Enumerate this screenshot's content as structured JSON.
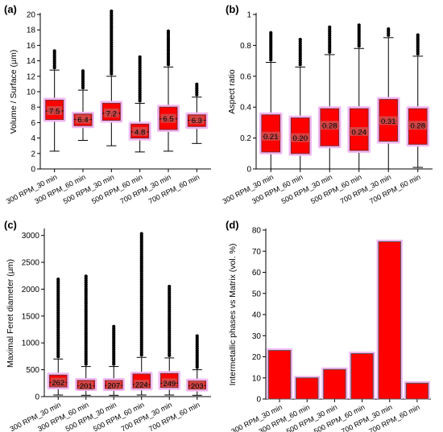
{
  "colors": {
    "box_fill": "#ff0000",
    "box_edge": "#7a2a2a",
    "glow": "#f2b8f2",
    "whisker": "#000000",
    "outlier": "#000000",
    "bar_fill": "#ff0000",
    "bar_edge": "#555555",
    "median_label_bg": "#c85a5a"
  },
  "chart_data": [
    {
      "panel_label": "(a)",
      "type": "box",
      "ylabel": "Volume / Surface (µm)",
      "ylim": [
        0,
        20
      ],
      "yticks": [
        "0",
        "2",
        "4",
        "6",
        "8",
        "10",
        "12",
        "14",
        "16",
        "18",
        "20"
      ],
      "categories": [
        "300 RPM_30 min",
        "300 RPM_60 min",
        "500 RPM_30 min",
        "500 RPM_60 min",
        "700 RPM_30 min",
        "700 RPM_60 min"
      ],
      "boxes": [
        {
          "whisker_low": 2.3,
          "q1": 6.4,
          "median": 7.5,
          "q3": 8.9,
          "whisker_high": 12.8,
          "outlier_max": 15.4,
          "median_label": "7.5"
        },
        {
          "whisker_low": 3.7,
          "q1": 5.6,
          "median": 6.4,
          "q3": 7.1,
          "whisker_high": 10.2,
          "outlier_max": 12.8,
          "median_label": "6.4"
        },
        {
          "whisker_low": 3.0,
          "q1": 6.3,
          "median": 7.2,
          "q3": 8.5,
          "whisker_high": 12.0,
          "outlier_max": 20.5,
          "median_label": "7.2"
        },
        {
          "whisker_low": 2.2,
          "q1": 4.0,
          "median": 4.8,
          "q3": 5.8,
          "whisker_high": 8.5,
          "outlier_max": 14.7,
          "median_label": "4.8"
        },
        {
          "whisker_low": 2.3,
          "q1": 5.1,
          "median": 6.5,
          "q3": 8.0,
          "whisker_high": 13.2,
          "outlier_max": 18.1,
          "median_label": "6.5"
        },
        {
          "whisker_low": 3.3,
          "q1": 5.5,
          "median": 6.3,
          "q3": 7.0,
          "whisker_high": 9.3,
          "outlier_max": 11.0,
          "median_label": "6.3"
        }
      ]
    },
    {
      "panel_label": "(b)",
      "type": "box",
      "ylabel": "Aspect ratio",
      "ylim": [
        0,
        1
      ],
      "yticks": [
        "0",
        "0.2",
        "0.4",
        "0.6",
        "0.8",
        "1"
      ],
      "categories": [
        "300 RPM_30 min",
        "300 RPM_60 min",
        "500 RPM_30 min",
        "500 RPM_60 min",
        "700 RPM_30 min",
        "700 RPM_60 min"
      ],
      "boxes": [
        {
          "whisker_low": 0.0,
          "q1": 0.11,
          "median": 0.21,
          "q3": 0.35,
          "whisker_high": 0.69,
          "outlier_max": 0.89,
          "median_label": "0.21"
        },
        {
          "whisker_low": 0.0,
          "q1": 0.1,
          "median": 0.2,
          "q3": 0.33,
          "whisker_high": 0.66,
          "outlier_max": 0.85,
          "median_label": "0.20"
        },
        {
          "whisker_low": 0.0,
          "q1": 0.15,
          "median": 0.28,
          "q3": 0.39,
          "whisker_high": 0.74,
          "outlier_max": 0.92,
          "median_label": "0.28"
        },
        {
          "whisker_low": 0.0,
          "q1": 0.12,
          "median": 0.24,
          "q3": 0.39,
          "whisker_high": 0.78,
          "outlier_max": 0.94,
          "median_label": "0.24"
        },
        {
          "whisker_low": 0.0,
          "q1": 0.18,
          "median": 0.31,
          "q3": 0.45,
          "whisker_high": 0.85,
          "outlier_max": 0.91,
          "median_label": "0.31"
        },
        {
          "whisker_low": 0.01,
          "q1": 0.16,
          "median": 0.28,
          "q3": 0.39,
          "whisker_high": 0.73,
          "outlier_max": 0.88,
          "median_label": "0.28"
        }
      ]
    },
    {
      "panel_label": "(c)",
      "type": "box",
      "ylabel": "Maximal Feret diameter (µm)",
      "ylim": [
        0,
        3100
      ],
      "yticks": [
        "0",
        "500",
        "1000",
        "1500",
        "2000",
        "2500",
        "3000"
      ],
      "categories": [
        "300 RPM_30 min",
        "300 RPM_60 min",
        "500 RPM_30 min",
        "500 RPM_60 min",
        "700 RPM_30 min",
        "700 RPM_60 min"
      ],
      "boxes": [
        {
          "whisker_low": 30,
          "q1": 180,
          "median": 262,
          "q3": 400,
          "whisker_high": 700,
          "outlier_max": 2210,
          "median_label": "262"
        },
        {
          "whisker_low": 25,
          "q1": 150,
          "median": 201,
          "q3": 300,
          "whisker_high": 560,
          "outlier_max": 2260,
          "median_label": "201"
        },
        {
          "whisker_low": 25,
          "q1": 150,
          "median": 207,
          "q3": 300,
          "whisker_high": 560,
          "outlier_max": 1320,
          "median_label": "207"
        },
        {
          "whisker_low": 30,
          "q1": 160,
          "median": 224,
          "q3": 420,
          "whisker_high": 730,
          "outlier_max": 3070,
          "median_label": "224"
        },
        {
          "whisker_low": 30,
          "q1": 170,
          "median": 249,
          "q3": 430,
          "whisker_high": 720,
          "outlier_max": 2070,
          "median_label": "249"
        },
        {
          "whisker_low": 25,
          "q1": 140,
          "median": 203,
          "q3": 290,
          "whisker_high": 500,
          "outlier_max": 1150,
          "median_label": "203"
        }
      ]
    },
    {
      "panel_label": "(d)",
      "type": "bar",
      "ylabel": "Intermetallic phases vs Matrix (vol. %)",
      "ylim": [
        0,
        80
      ],
      "yticks": [
        "0",
        "10",
        "20",
        "30",
        "40",
        "50",
        "60",
        "70",
        "80"
      ],
      "categories": [
        "300 RPM_30 min",
        "300 RPM_60 min",
        "500 RPM_30 min",
        "500 RPM_60 min",
        "700 RPM_30 min",
        "700 RPM_60 min"
      ],
      "values": [
        23,
        10,
        14,
        21.5,
        74.5,
        7.5
      ]
    }
  ]
}
